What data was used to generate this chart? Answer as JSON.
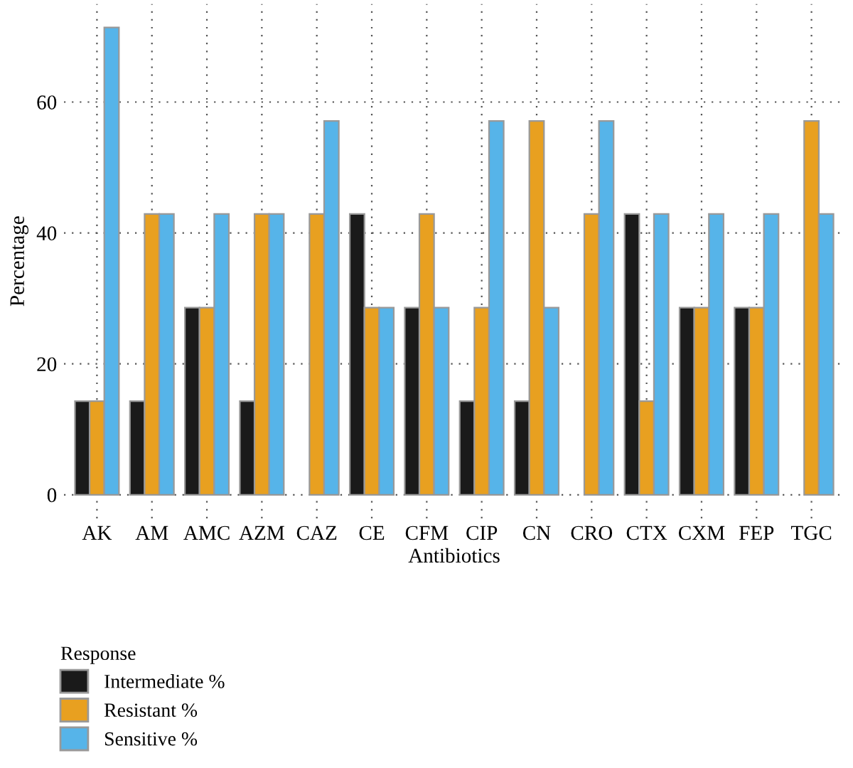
{
  "chart_data": {
    "type": "bar",
    "xlabel": "Antibiotics",
    "ylabel": "Percentage",
    "legend_title": "Response",
    "categories": [
      "AK",
      "AM",
      "AMC",
      "AZM",
      "CAZ",
      "CE",
      "CFM",
      "CIP",
      "CN",
      "CRO",
      "CTX",
      "CXM",
      "FEP",
      "TGC"
    ],
    "series": [
      {
        "name": "Intermediate %",
        "color": "#1a1a1a",
        "values": [
          14.3,
          14.3,
          28.6,
          14.3,
          0,
          42.9,
          28.6,
          14.3,
          14.3,
          0,
          42.9,
          28.6,
          28.6,
          0
        ]
      },
      {
        "name": "Resistant %",
        "color": "#e8a020",
        "values": [
          14.3,
          42.9,
          28.6,
          42.9,
          42.9,
          28.6,
          42.9,
          28.6,
          57.1,
          42.9,
          14.3,
          28.6,
          28.6,
          57.1
        ]
      },
      {
        "name": "Sensitive %",
        "color": "#56b4e9",
        "values": [
          71.4,
          42.9,
          42.9,
          42.9,
          57.1,
          28.6,
          28.6,
          57.1,
          28.6,
          57.1,
          42.9,
          42.9,
          42.9,
          42.9
        ]
      }
    ],
    "ylim": [
      -3.6,
      75
    ],
    "yticks": [
      0,
      20,
      40,
      60
    ],
    "grid": true,
    "legend": "bottom left"
  }
}
